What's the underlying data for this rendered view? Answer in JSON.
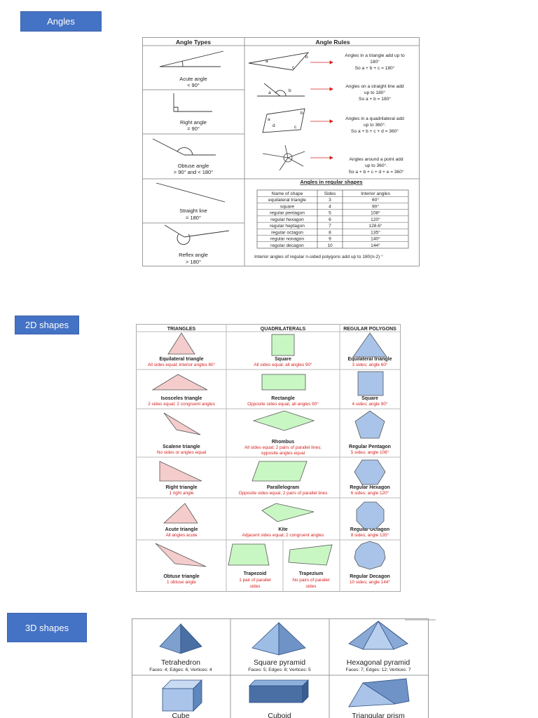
{
  "sections": {
    "angles": "Angles",
    "shapes2d": "2D shapes",
    "shapes3d": "3D shapes"
  },
  "angles": {
    "col_types": "Angle Types",
    "col_rules": "Angle Rules",
    "types": [
      {
        "name": "Acute angle",
        "rule": "< 90°"
      },
      {
        "name": "Right angle",
        "rule": "= 90°"
      },
      {
        "name": "Obtuse angle",
        "rule": "> 90° and < 180°"
      },
      {
        "name": "Straight line",
        "rule": "= 180°"
      },
      {
        "name": "Reflex angle",
        "rule": "> 180°"
      }
    ],
    "rules": [
      {
        "l1": "Angles in a triangle add up to",
        "l2": "180°",
        "l3": "So a + b + c = 180°"
      },
      {
        "l1": "Angles on a straight line add",
        "l2": "up to 180°",
        "l3": "So a + b = 180°"
      },
      {
        "l1": "Angles in a quadrilateral add",
        "l2": "up to 360°.",
        "l3": "So a + b + c + d = 360°"
      },
      {
        "l1": "Angles around a point add",
        "l2": "up to 360°.",
        "l3": "So a + b + c + d + e = 360°"
      }
    ],
    "regular_title": "Angles in regular shapes",
    "table_headers": [
      "Name of shape",
      "Sides",
      "Interior angles"
    ],
    "table_rows": [
      [
        "equilateral triangle",
        "3",
        "60°"
      ],
      [
        "square",
        "4",
        "90°"
      ],
      [
        "regular pentagon",
        "5",
        "108°"
      ],
      [
        "regular hexagon",
        "6",
        "120°"
      ],
      [
        "regular heptagon",
        "7",
        "128.6°"
      ],
      [
        "regular octagon",
        "8",
        "135°"
      ],
      [
        "regular nonagon",
        "9",
        "140°"
      ],
      [
        "regular decagon",
        "10",
        "144°"
      ]
    ],
    "footnote": "Interior angles of regular n-sided polygons add up to 180(n-2) °"
  },
  "shapes2d": {
    "headers": [
      "TRIANGLES",
      "QUADRILATERALS",
      "REGULAR POLYGONS"
    ],
    "rows": [
      {
        "tri": "Equilateral triangle",
        "tri_d": "All sides equal; interior angles 60°",
        "quad": "Square",
        "quad_d": "All sides equal; all angles 90°",
        "quad_d2": "",
        "poly": "Equilateral triangle",
        "poly_d": "3 sides; angle 60°"
      },
      {
        "tri": "Isosceles triangle",
        "tri_d": "2 sides equal; 2 congruent angles",
        "quad": "Rectangle",
        "quad_d": "Opposite sides equal, all angles 90°",
        "quad_d2": "",
        "poly": "Square",
        "poly_d": "4 sides; angle 90°"
      },
      {
        "tri": "Scalene triangle",
        "tri_d": "No sides or angles equal",
        "quad": "Rhombus",
        "quad_d": "All sides equal; 2 pairs of parallel lines;",
        "quad_d2": "opposite angles equal",
        "poly": "Regular Pentagon",
        "poly_d": "5 sides; angle 108°"
      },
      {
        "tri": "Right triangle",
        "tri_d": "1 right angle",
        "quad": "Parallelogram",
        "quad_d": "Opposite sides equal, 2 pairs of parallel lines",
        "quad_d2": "",
        "poly": "Regular Hexagon",
        "poly_d": "6 sides; angle 120°"
      },
      {
        "tri": "Acute triangle",
        "tri_d": "All angles acute",
        "quad": "Kite",
        "quad_d": "Adjacent sides equal; 2 congruent angles",
        "quad_d2": "",
        "poly": "Regular Octagon",
        "poly_d": "8 sides; angle 135°"
      },
      {
        "tri": "Obtuse triangle",
        "tri_d": "1 obtuse angle",
        "quad": "",
        "quad_d": "",
        "quad_d2": "",
        "poly": "Regular Decagon",
        "poly_d": "10 sides; angle 144°"
      }
    ],
    "trapezoid": {
      "name": "Trapezoid",
      "d1": "1 pair of parallel",
      "d2": "sides"
    },
    "trapezium": {
      "name": "Trapezium",
      "d1": "No pairs of parallel",
      "d2": "sides"
    }
  },
  "shapes3d": {
    "items": [
      {
        "name": "Tetrahedron",
        "info": "Faces: 4; Edges: 6; Vertices: 4"
      },
      {
        "name": "Square pyramid",
        "info": "Faces: 5; Edges: 8; Vertices: 5"
      },
      {
        "name": "Hexagonal pyramid",
        "info": "Faces: 7; Edges: 12; Vertices: 7"
      },
      {
        "name": "Cube",
        "info": ""
      },
      {
        "name": "Cuboid",
        "info": ""
      },
      {
        "name": "Triangular prism",
        "info": ""
      }
    ]
  },
  "colors": {
    "button": "#4472c4",
    "pink": "#f4cccc",
    "green": "#c9f7c4",
    "blue": "#a9c4e8",
    "red_text": "#d62020"
  }
}
